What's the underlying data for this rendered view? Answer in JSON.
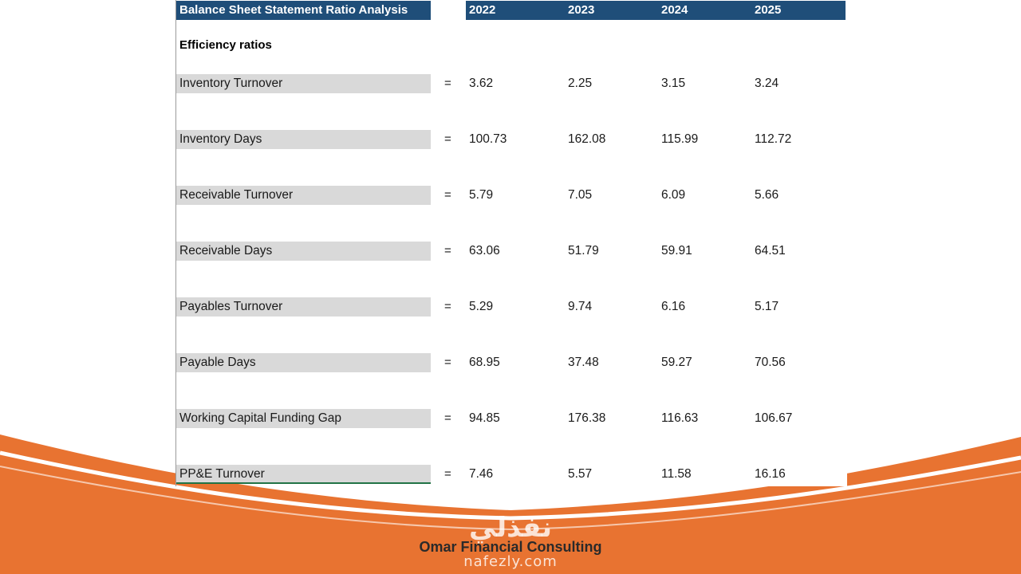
{
  "sheet": {
    "title": "Balance Sheet Statement Ratio Analysis",
    "years": [
      "2022",
      "2023",
      "2024",
      "2025"
    ],
    "section_title": "Efficiency ratios",
    "equals_sign": "=",
    "rows": [
      {
        "label": "Inventory Turnover",
        "values": [
          "3.62",
          "2.25",
          "3.15",
          "3.24"
        ]
      },
      {
        "label": "Inventory Days",
        "values": [
          "100.73",
          "162.08",
          "115.99",
          "112.72"
        ]
      },
      {
        "label": "Receivable Turnover",
        "values": [
          "5.79",
          "7.05",
          "6.09",
          "5.66"
        ]
      },
      {
        "label": "Receivable Days",
        "values": [
          "63.06",
          "51.79",
          "59.91",
          "64.51"
        ]
      },
      {
        "label": "Payables Turnover",
        "values": [
          "5.29",
          "9.74",
          "6.16",
          "5.17"
        ]
      },
      {
        "label": "Payable Days",
        "values": [
          "68.95",
          "37.48",
          "59.27",
          "70.56"
        ]
      },
      {
        "label": "Working Capital Funding Gap",
        "values": [
          "94.85",
          "176.38",
          "116.63",
          "106.67"
        ]
      },
      {
        "label": "PP&E Turnover",
        "values": [
          "7.46",
          "5.57",
          "11.58",
          "16.16"
        ]
      }
    ]
  },
  "footer": {
    "company": "Omar Financial Consulting"
  },
  "watermark": {
    "logo_text": "نفذلي",
    "url": "nafezly.com"
  },
  "colors": {
    "header_blue": "#1f4e79",
    "label_gray": "#d9d9d9",
    "accent_orange": "#e87331"
  }
}
